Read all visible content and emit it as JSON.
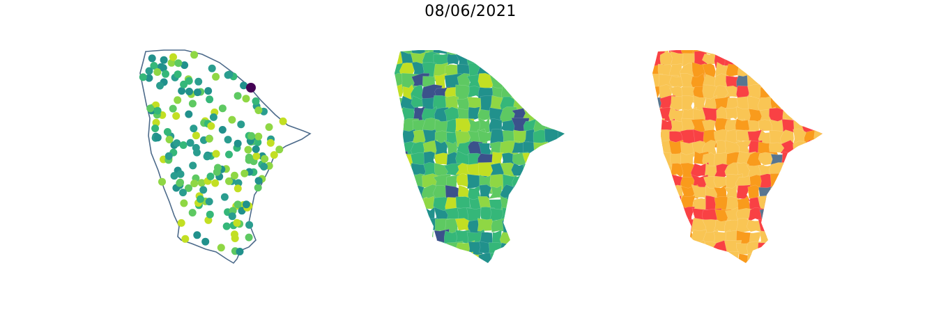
{
  "title": "08/06/2021",
  "colors": {
    "outline": "#4c6a8a",
    "viridis": [
      "#440154",
      "#3b528b",
      "#21918c",
      "#2a9d8f",
      "#35b779",
      "#5ec962",
      "#8fd744",
      "#c2df23",
      "#fde725"
    ],
    "classes": [
      "#f9c554",
      "#f99b1c",
      "#f94144",
      "#577590"
    ]
  },
  "panels": [
    {
      "name": "station-points",
      "type": "scatter-on-outline"
    },
    {
      "name": "municipality-choropleth",
      "type": "choropleth-viridis"
    },
    {
      "name": "municipality-classes",
      "type": "choropleth-categorical"
    }
  ]
}
